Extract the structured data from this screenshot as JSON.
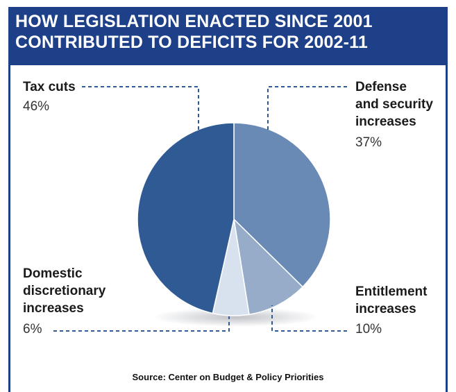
{
  "title_lines": [
    "HOW LEGISLATION ENACTED SINCE 2001",
    "CONTRIBUTED TO DEFICITS FOR 2002-11"
  ],
  "source": "Source: Center on Budget & Policy Priorities",
  "colors": {
    "header_bg": "#1e4089",
    "tax_cuts": "#2f5a93",
    "defense": "#6a8ab6",
    "entitlement": "#96acc9",
    "domestic": "#d8e2ef",
    "leader_line": "#2f5a93"
  },
  "chart_data": {
    "type": "pie",
    "title": "HOW LEGISLATION ENACTED SINCE 2001 CONTRIBUTED TO DEFICITS FOR 2002-11",
    "slices": [
      {
        "label_lines": [
          "Defense",
          "and security",
          "increases"
        ],
        "value_label": "37%",
        "value": 37,
        "color": "#6a8ab6"
      },
      {
        "label_lines": [
          "Entitlement",
          "increases"
        ],
        "value_label": "10%",
        "value": 10,
        "color": "#96acc9"
      },
      {
        "label_lines": [
          "Domestic",
          "discretionary",
          "increases"
        ],
        "value_label": "6%",
        "value": 6,
        "color": "#d8e2ef"
      },
      {
        "label_lines": [
          "Tax cuts"
        ],
        "value_label": "46%",
        "value": 46,
        "color": "#2f5a93"
      }
    ],
    "start": "12 o'clock",
    "direction": "clockwise",
    "legend": "none (direct labels with dashed leader lines)"
  }
}
